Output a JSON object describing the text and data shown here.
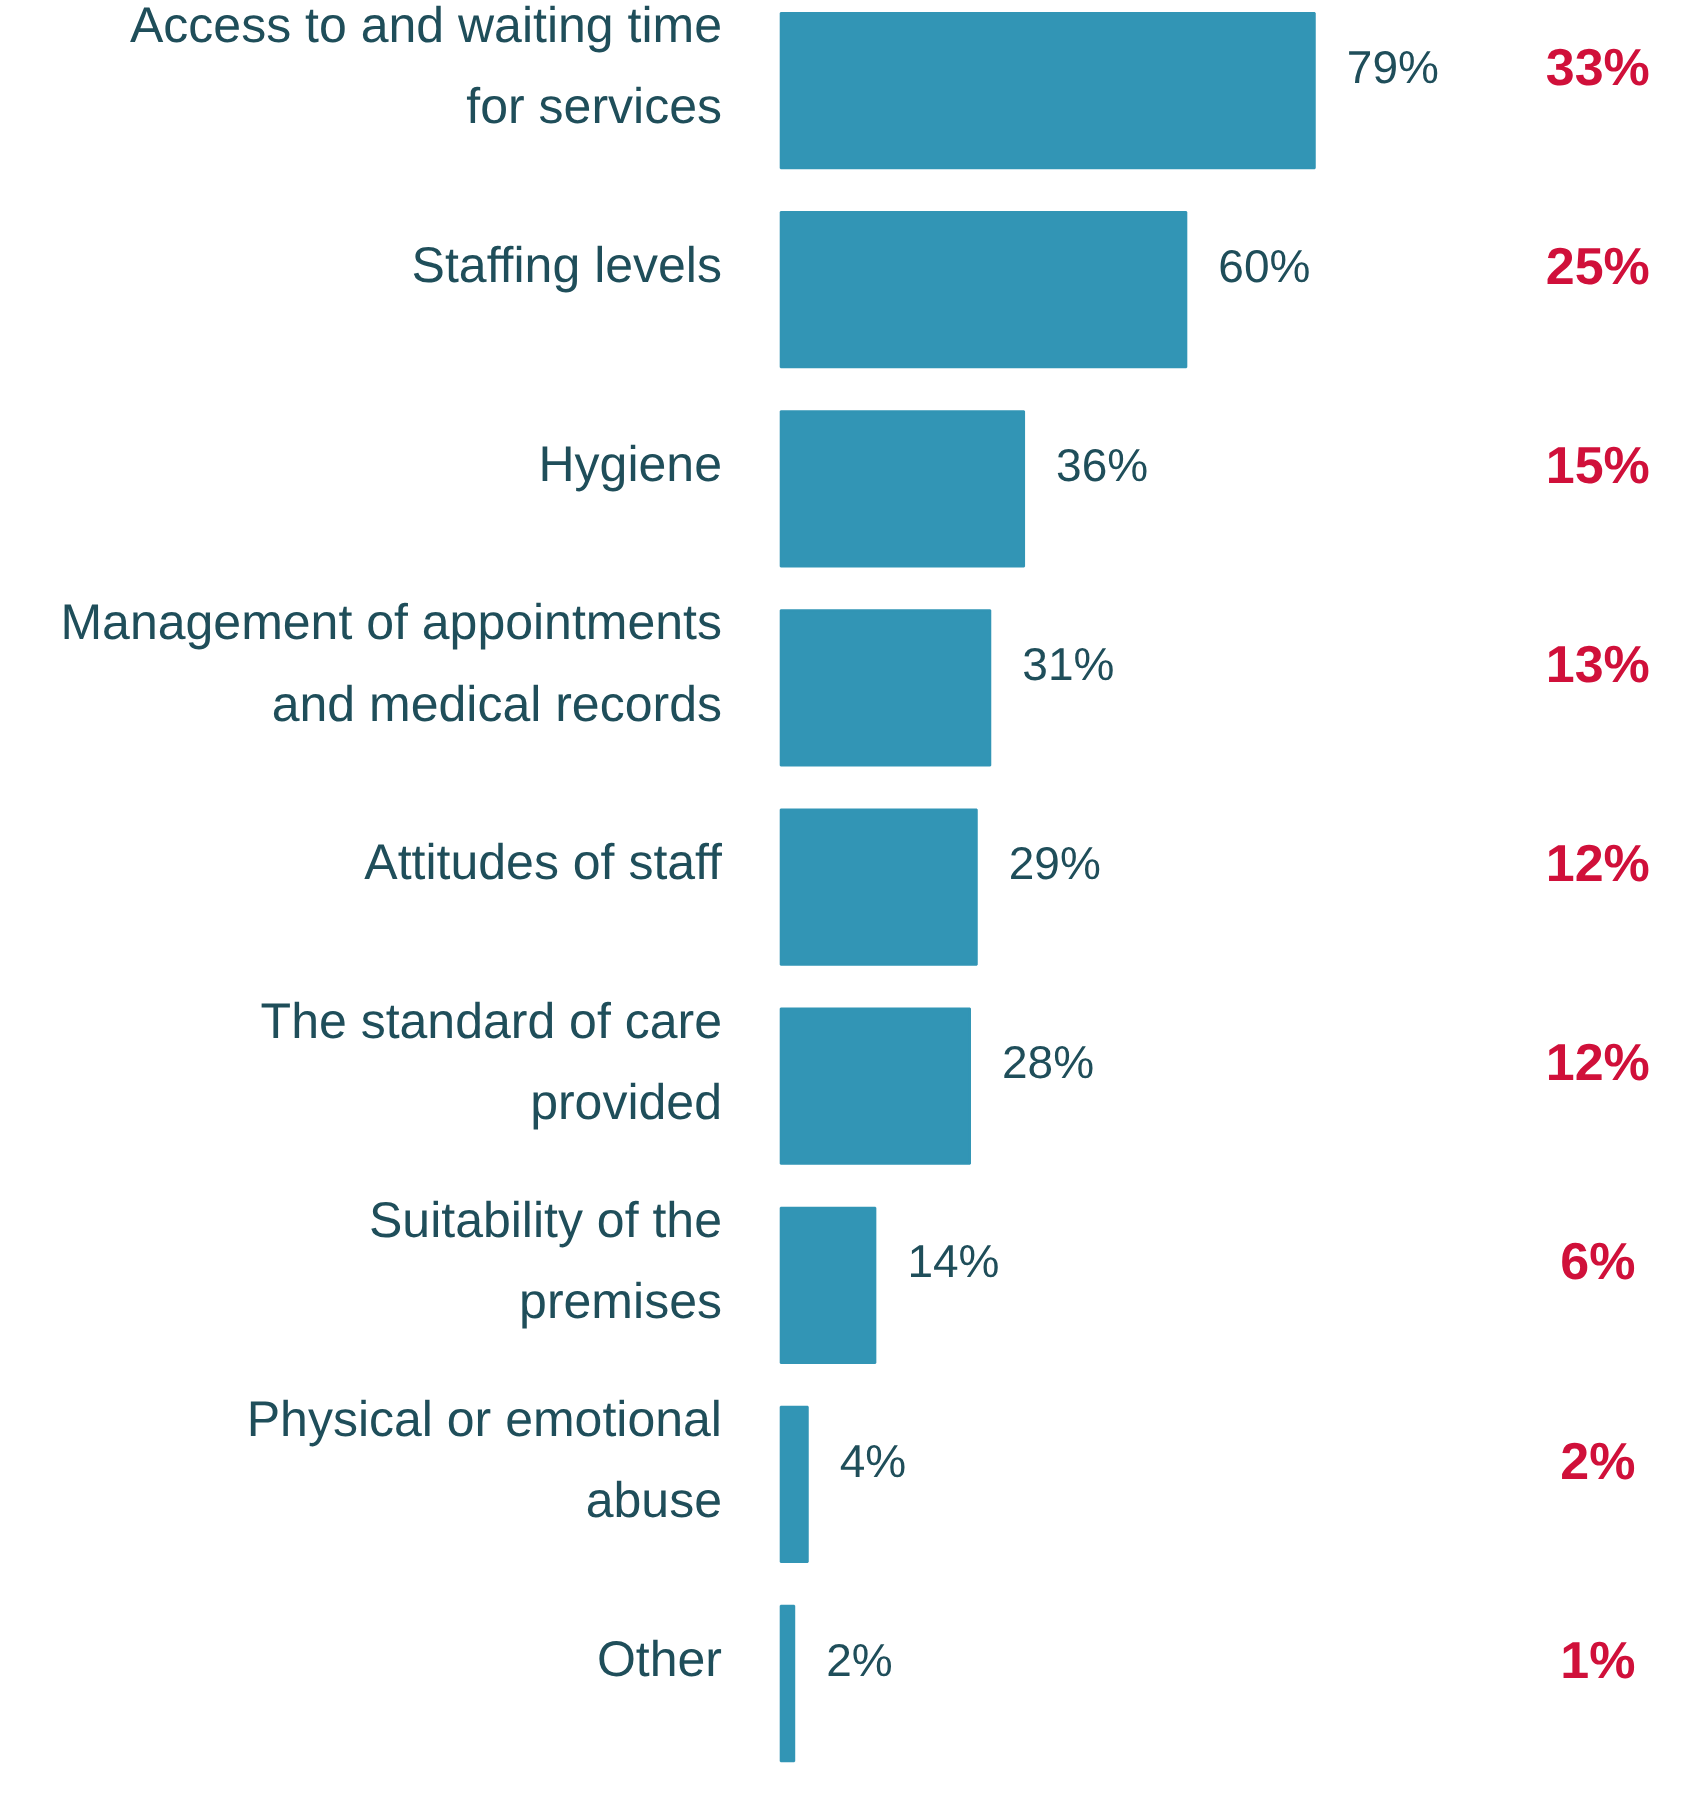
{
  "chart_data": {
    "type": "bar",
    "orientation": "horizontal",
    "categories": [
      "Access to and waiting time for services",
      "Staffing levels",
      "Hygiene",
      "Management of appointments and medical records",
      "Attitudes of staff",
      "The standard of care provided",
      "Suitability of the premises",
      "Physical or emotional abuse",
      "Other"
    ],
    "values": [
      79,
      60,
      36,
      31,
      29,
      28,
      14,
      4,
      2
    ],
    "value_labels": [
      "79%",
      "60%",
      "36%",
      "31%",
      "29%",
      "28%",
      "14%",
      "4%",
      "2%"
    ],
    "color": "#3295b5",
    "grid": false,
    "annotations": [
      "33%",
      "25%",
      "15%",
      "13%",
      "12%",
      "12%",
      "6%",
      "2%",
      "1%"
    ]
  }
}
